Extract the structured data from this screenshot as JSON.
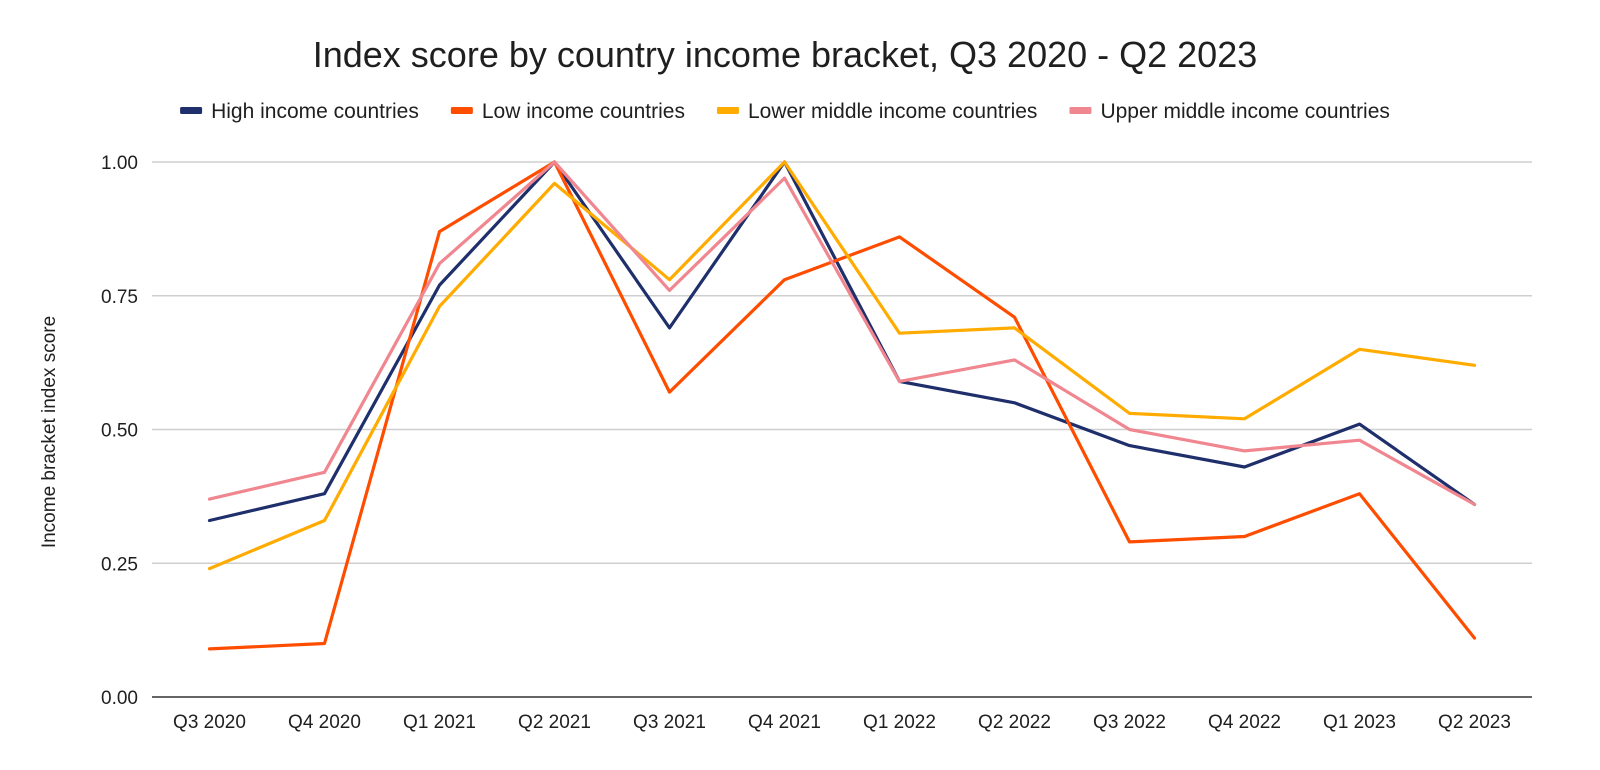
{
  "chart_data": {
    "type": "line",
    "title": "Index score by country income bracket, Q3 2020 - Q2 2023",
    "xlabel": "",
    "ylabel": "Income bracket index score",
    "ylim": [
      0,
      1
    ],
    "yticks": [
      "0.00",
      "0.25",
      "0.50",
      "0.75",
      "1.00"
    ],
    "ytick_values": [
      0,
      0.25,
      0.5,
      0.75,
      1.0
    ],
    "grid": true,
    "legend_position": "top",
    "categories": [
      "Q3 2020",
      "Q4 2020",
      "Q1 2021",
      "Q2 2021",
      "Q3 2021",
      "Q4 2021",
      "Q1 2022",
      "Q2 2022",
      "Q3 2022",
      "Q4 2022",
      "Q1 2023",
      "Q2 2023"
    ],
    "series": [
      {
        "name": "High income countries",
        "color": "#1f2f6b",
        "values": [
          0.33,
          0.38,
          0.77,
          1.0,
          0.69,
          1.0,
          0.59,
          0.55,
          0.47,
          0.43,
          0.51,
          0.36
        ]
      },
      {
        "name": "Low income countries",
        "color": "#ff4d00",
        "values": [
          0.09,
          0.1,
          0.87,
          1.0,
          0.57,
          0.78,
          0.86,
          0.71,
          0.29,
          0.3,
          0.38,
          0.11
        ]
      },
      {
        "name": "Lower middle income countries",
        "color": "#ffab00",
        "values": [
          0.24,
          0.33,
          0.73,
          0.96,
          0.78,
          1.0,
          0.68,
          0.69,
          0.53,
          0.52,
          0.65,
          0.62
        ]
      },
      {
        "name": "Upper middle income countries",
        "color": "#f0868f",
        "values": [
          0.37,
          0.42,
          0.81,
          1.0,
          0.76,
          0.97,
          0.59,
          0.63,
          0.5,
          0.46,
          0.48,
          0.36
        ]
      }
    ]
  }
}
